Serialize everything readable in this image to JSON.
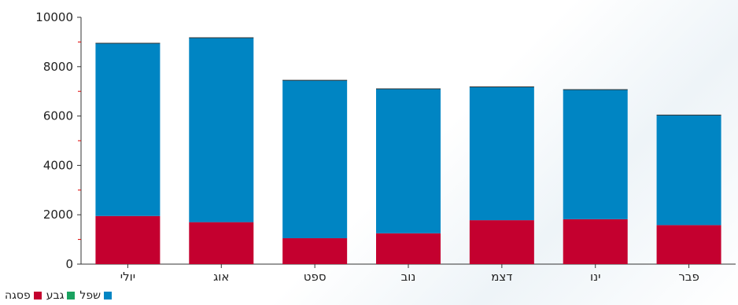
{
  "chart_data": {
    "type": "bar",
    "stacked": true,
    "categories": [
      "יולי",
      "אוג",
      "ספט",
      "נוב",
      "דצמ",
      "ינו",
      "פבר"
    ],
    "series": [
      {
        "name": "פסגה",
        "color": "#c4002f",
        "values": [
          1950,
          1700,
          1050,
          1250,
          1780,
          1820,
          1580
        ]
      },
      {
        "name": "גבע",
        "color": "#1aa260",
        "values": [
          0,
          0,
          0,
          0,
          0,
          0,
          0
        ]
      },
      {
        "name": "שפל",
        "color": "#0085c3",
        "values": [
          7000,
          7470,
          6400,
          5850,
          5400,
          5250,
          4460
        ]
      }
    ],
    "ylim": [
      0,
      10000
    ],
    "yticks": [
      0,
      2000,
      4000,
      6000,
      8000,
      10000
    ],
    "grid": false,
    "legend": "bottom-left"
  },
  "legend": {
    "items": [
      {
        "label": "שפל",
        "color": "#0085c3",
        "icon": "square-swatch"
      },
      {
        "label": "גבע",
        "color": "#1aa260",
        "icon": "square-swatch"
      },
      {
        "label": "פסגה",
        "color": "#c4002f",
        "icon": "square-swatch"
      }
    ]
  }
}
